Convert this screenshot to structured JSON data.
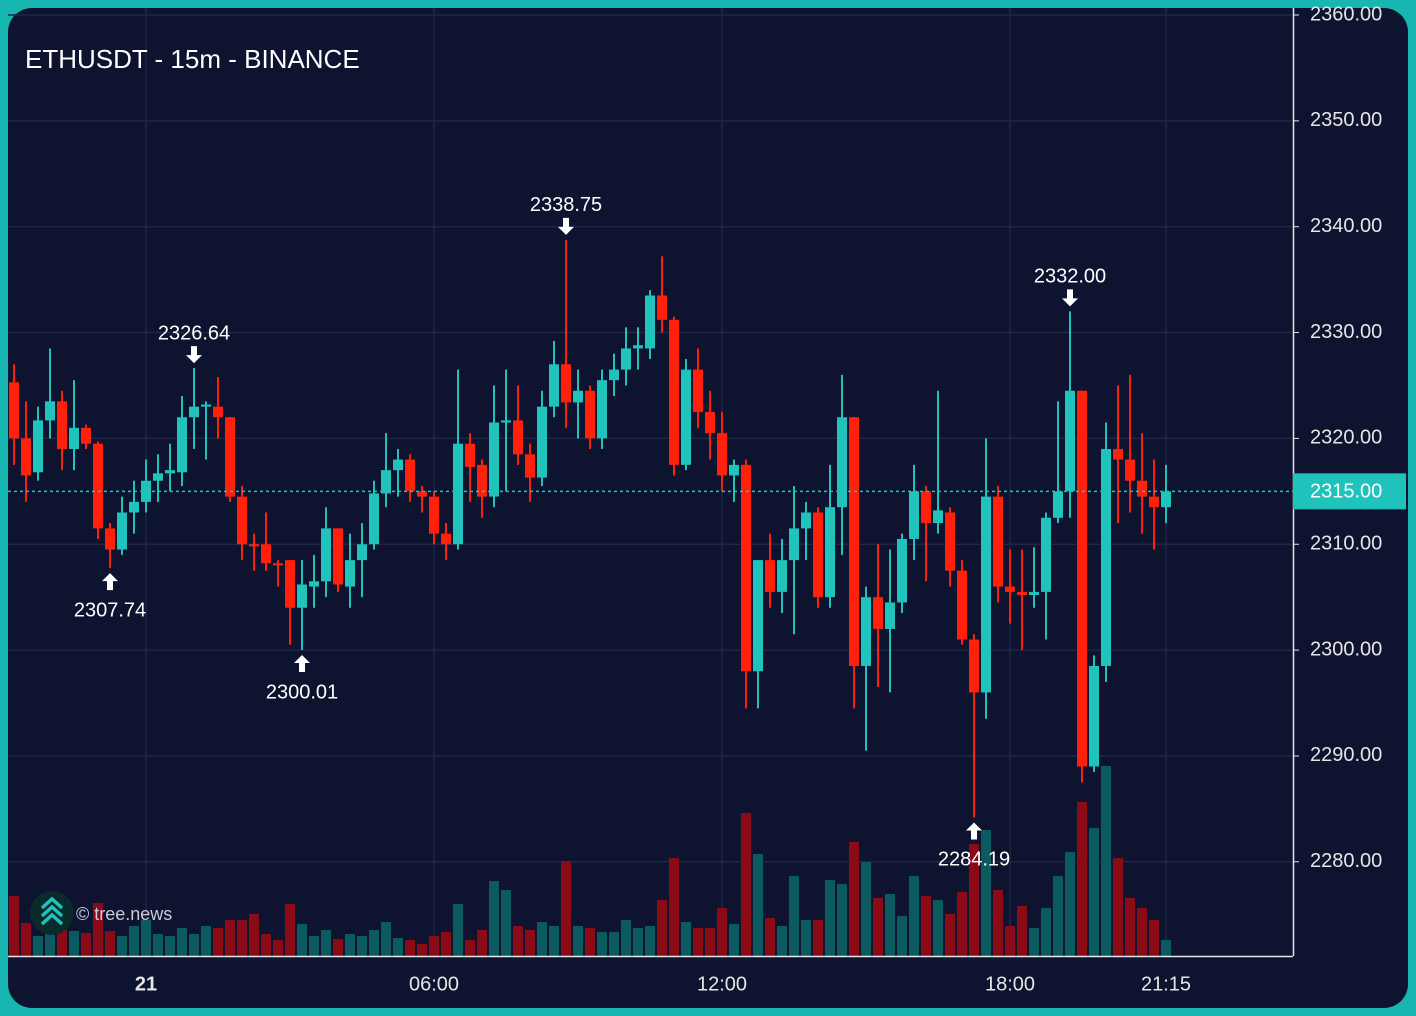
{
  "chart_data": {
    "type": "candlestick",
    "title": "ETHUSDT - 15m - BINANCE",
    "watermark": "© tree.news",
    "categories": [
      null,
      null,
      null,
      null,
      null,
      null,
      null,
      null,
      null,
      null,
      null,
      "21",
      null,
      null,
      null,
      null,
      null,
      null,
      null,
      null,
      null,
      null,
      null,
      null,
      null,
      null,
      null,
      null,
      null,
      null,
      null,
      null,
      null,
      null,
      null,
      "06:00",
      null,
      null,
      null,
      null,
      null,
      null,
      null,
      null,
      null,
      null,
      null,
      null,
      null,
      null,
      null,
      null,
      null,
      null,
      null,
      null,
      null,
      null,
      null,
      "12:00",
      null,
      null,
      null,
      null,
      null,
      null,
      null,
      null,
      null,
      null,
      null,
      null,
      null,
      null,
      null,
      null,
      null,
      null,
      null,
      null,
      null,
      null,
      null,
      "18:00",
      null,
      null,
      null,
      null,
      null,
      null,
      null,
      null,
      null,
      null,
      null,
      null,
      "21:15"
    ],
    "open": [
      2325.3,
      2320,
      2316.8,
      2321.7,
      2323.5,
      2319,
      2321,
      2319.5,
      2311.5,
      2309.5,
      2313,
      2314,
      2316,
      2316.7,
      2316.8,
      2322,
      2323,
      2323,
      2322,
      2314.5,
      2310,
      2310,
      2308.2,
      2308.5,
      2304,
      2306,
      2306.5,
      2311.5,
      2306,
      2308.5,
      2310,
      2314.8,
      2317,
      2318,
      2315,
      2314.5,
      2311,
      2310,
      2319.5,
      2317.5,
      2314.5,
      2321.5,
      2321.7,
      2318.5,
      2316.3,
      2323,
      2327,
      2323.4,
      2324.5,
      2320,
      2325.5,
      2326.5,
      2328.5,
      2328.5,
      2333.5,
      2331.2,
      2317.5,
      2326.5,
      2322.5,
      2320.5,
      2316.5,
      2317.5,
      2298,
      2308.5,
      2305.5,
      2308.5,
      2311.5,
      2313,
      2305,
      2313.5,
      2322,
      2298.5,
      2305,
      2302,
      2304.5,
      2310.5,
      2315,
      2312,
      2313,
      2307.5,
      2301,
      2296,
      2314.5,
      2306,
      2305.5,
      2305.2,
      2305.5,
      2312.5,
      2315,
      2324.5,
      2289,
      2298.5,
      2319,
      2318,
      2316,
      2314.5,
      2313.5
    ],
    "high": [
      2327,
      2323.5,
      2323,
      2328.5,
      2324.5,
      2325.5,
      2321.3,
      2319.7,
      2312,
      2314.5,
      2316,
      2318,
      2318.5,
      2319.5,
      2324,
      2326.64,
      2323.5,
      2325.8,
      2322,
      2315.5,
      2311,
      2313,
      2308.5,
      2308.5,
      2308.5,
      2309,
      2313.5,
      2311.5,
      2311,
      2312,
      2316,
      2320.5,
      2319,
      2318.5,
      2315.5,
      2315,
      2312,
      2326.5,
      2320.5,
      2318,
      2325,
      2326.5,
      2325,
      2319.5,
      2324.5,
      2329.2,
      2338.75,
      2326.5,
      2325,
      2326.5,
      2328,
      2330.5,
      2330.5,
      2334,
      2337.2,
      2331.5,
      2327.5,
      2328.5,
      2324.5,
      2322.5,
      2318,
      2318,
      2308.5,
      2311,
      2310.5,
      2315.5,
      2314,
      2313.5,
      2317.5,
      2326,
      2322,
      2306,
      2310,
      2309.5,
      2311,
      2317.5,
      2315.5,
      2324.5,
      2313.5,
      2308.5,
      2301.5,
      2320,
      2315.5,
      2309.5,
      2309.5,
      2309.7,
      2313,
      2323.5,
      2332,
      2324.5,
      2299.5,
      2321.5,
      2325,
      2326,
      2320.5,
      2318,
      2317.5
    ],
    "low": [
      2317.5,
      2314,
      2316,
      2320,
      2317,
      2317,
      2319,
      2310.5,
      2307.74,
      2309,
      2311,
      2313,
      2314,
      2315,
      2315.5,
      2319,
      2318,
      2320,
      2314,
      2308.5,
      2307.5,
      2307.5,
      2306,
      2300.5,
      2300.01,
      2304,
      2305,
      2305.5,
      2304,
      2305,
      2309.5,
      2313.5,
      2314.5,
      2314,
      2313,
      2310,
      2308.5,
      2309.5,
      2314,
      2312.5,
      2313.5,
      2315,
      2317.5,
      2314,
      2315.5,
      2322,
      2321,
      2320,
      2319,
      2319,
      2324,
      2325,
      2326.5,
      2327.5,
      2330,
      2316.5,
      2317,
      2321,
      2318,
      2315,
      2314,
      2294.5,
      2294.5,
      2304,
      2303.5,
      2301.5,
      2308.5,
      2304,
      2304,
      2309,
      2294.5,
      2290.5,
      2296.5,
      2296,
      2303.5,
      2308.5,
      2306.5,
      2311,
      2306,
      2300.5,
      2284.19,
      2293.5,
      2304.5,
      2302.5,
      2300,
      2304,
      2301,
      2312,
      2312.5,
      2287.5,
      2288.5,
      2297,
      2312,
      2313,
      2311,
      2309.5,
      2312
    ],
    "close": [
      2320,
      2316.5,
      2321.7,
      2323.5,
      2319,
      2321,
      2319.5,
      2311.5,
      2309.5,
      2313,
      2314,
      2316,
      2316.7,
      2317,
      2322,
      2323,
      2323.2,
      2322,
      2314.5,
      2310,
      2309.8,
      2308.2,
      2308,
      2304,
      2306.2,
      2306.5,
      2311.5,
      2306.2,
      2308.5,
      2310,
      2314.8,
      2317,
      2318,
      2315,
      2314.5,
      2311,
      2310,
      2319.5,
      2317.3,
      2314.5,
      2321.5,
      2321.7,
      2318.5,
      2316.3,
      2323,
      2327,
      2323.4,
      2324.5,
      2320,
      2325.5,
      2326.5,
      2328.5,
      2328.8,
      2333.5,
      2331.2,
      2317.5,
      2326.5,
      2322.5,
      2320.5,
      2316.5,
      2317.5,
      2298,
      2308.5,
      2305.5,
      2308.5,
      2311.5,
      2313,
      2305,
      2313.5,
      2322,
      2298.5,
      2305,
      2302,
      2304.5,
      2310.5,
      2315,
      2312,
      2313.2,
      2307.5,
      2301,
      2296,
      2314.5,
      2306,
      2305.5,
      2305.2,
      2305.5,
      2312.5,
      2315,
      2324.5,
      2289,
      2298.5,
      2319,
      2318,
      2316,
      2314.5,
      2313.5,
      2315
    ],
    "volume": [
      60,
      33,
      20,
      25,
      28,
      25,
      23,
      53,
      25,
      20,
      30,
      36,
      22,
      20,
      28,
      22,
      30,
      28,
      36,
      36,
      42,
      22,
      16,
      52,
      32,
      20,
      26,
      17,
      22,
      20,
      26,
      34,
      18,
      16,
      12,
      20,
      24,
      52,
      16,
      26,
      75,
      66,
      30,
      26,
      34,
      30,
      95,
      30,
      28,
      24,
      24,
      36,
      28,
      30,
      56,
      98,
      34,
      28,
      28,
      48,
      32,
      143,
      102,
      38,
      30,
      80,
      36,
      36,
      76,
      72,
      114,
      94,
      58,
      62,
      40,
      80,
      60,
      56,
      42,
      64,
      112,
      126,
      66,
      30,
      50,
      28,
      48,
      80,
      104,
      154,
      128,
      190,
      98,
      58,
      48,
      36,
      16
    ],
    "ylim": [
      2271.1,
      2360
    ],
    "yticks": [
      {
        "value": 2280,
        "label": "2280.00"
      },
      {
        "value": 2290,
        "label": "2290.00"
      },
      {
        "value": 2300,
        "label": "2300.00"
      },
      {
        "value": 2310,
        "label": "2310.00"
      },
      {
        "value": 2320,
        "label": "2320.00"
      },
      {
        "value": 2330,
        "label": "2330.00"
      },
      {
        "value": 2340,
        "label": "2340.00"
      },
      {
        "value": 2350,
        "label": "2350.00"
      },
      {
        "value": 2360,
        "label": "2360.00"
      }
    ],
    "extremes": [
      {
        "value": 2326.64,
        "label": "2326.64"
      },
      {
        "value": 2338.75,
        "label": "2338.75"
      },
      {
        "value": 2332,
        "label": "2332.00"
      },
      {
        "value": 2307.74,
        "label": "2307.74"
      },
      {
        "value": 2300.01,
        "label": "2300.01"
      },
      {
        "value": 2284.19,
        "label": "2284.19"
      }
    ],
    "last_price": {
      "value": 2315,
      "label": "2315.00"
    },
    "up_color": "#1fc3bb",
    "down_color": "#ff200c",
    "volume_up_color": "#0b5a60",
    "volume_down_color": "#8a0a16",
    "grid": true
  }
}
